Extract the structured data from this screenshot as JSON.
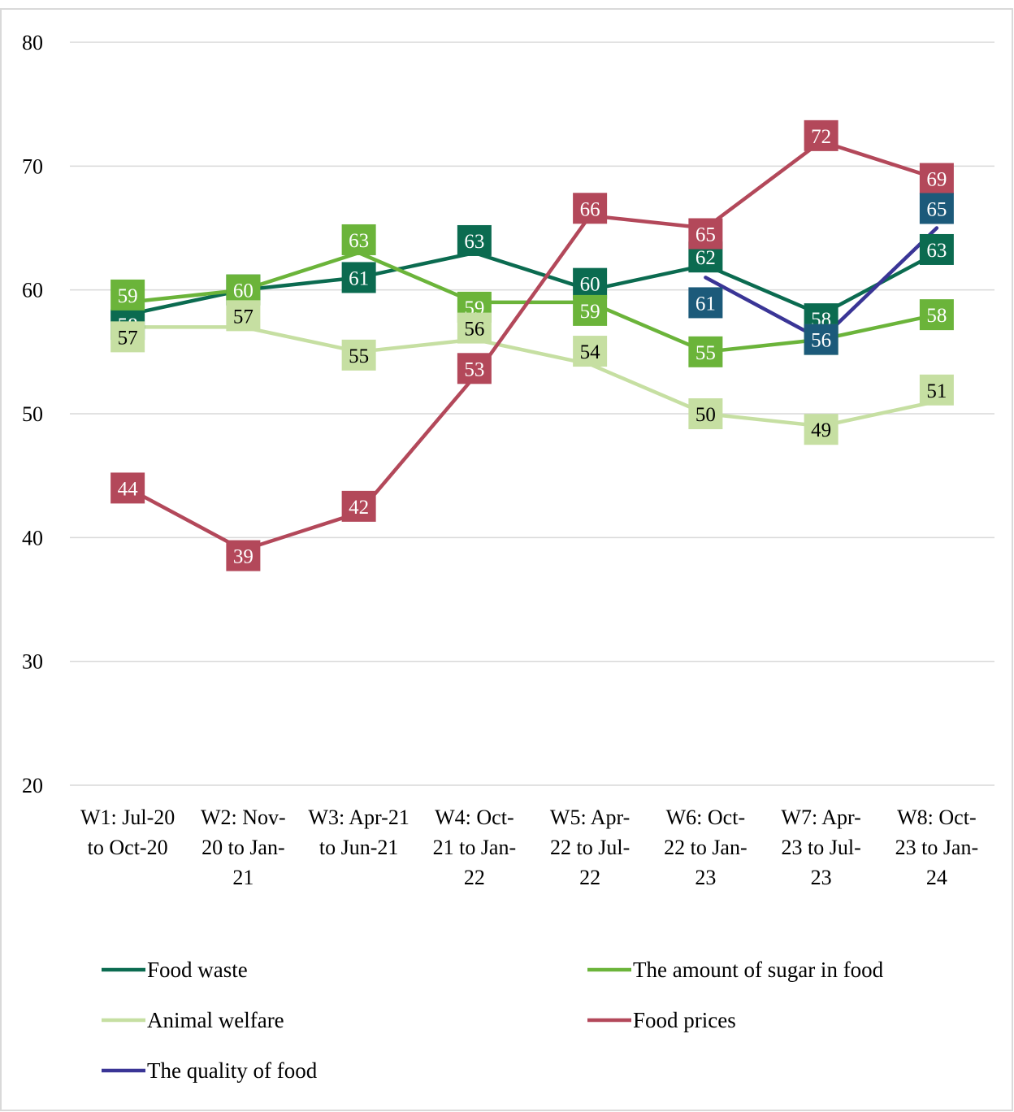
{
  "chart_data": {
    "type": "line",
    "title": "",
    "xlabel": "",
    "ylabel": "",
    "ylim": [
      20,
      80
    ],
    "yticks": [
      20,
      30,
      40,
      50,
      60,
      70,
      80
    ],
    "grid": true,
    "legend_position": "bottom",
    "categories": [
      [
        "W1: Jul-20",
        "to Oct-20"
      ],
      [
        "W2: Nov-",
        "20 to Jan-",
        "21"
      ],
      [
        "W3: Apr-21",
        "to Jun-21"
      ],
      [
        "W4: Oct-",
        "21 to Jan-",
        "22"
      ],
      [
        "W5: Apr-",
        "22 to Jul-",
        "22"
      ],
      [
        "W6: Oct-",
        "22 to Jan-",
        "23"
      ],
      [
        "W7: Apr-",
        "23 to Jul-",
        "23"
      ],
      [
        "W8: Oct-",
        "23 to Jan-",
        "24"
      ]
    ],
    "series": [
      {
        "name": "Food waste",
        "color": "#0b6b50",
        "label_text_color": "#ffffff",
        "values": [
          58,
          60,
          61,
          63,
          60,
          62,
          58,
          63
        ]
      },
      {
        "name": "The amount of sugar in food",
        "color": "#6bb43a",
        "label_text_color": "#ffffff",
        "values": [
          59,
          60,
          63,
          59,
          59,
          55,
          56,
          58
        ]
      },
      {
        "name": "Animal welfare",
        "color": "#c6dfa2",
        "label_text_color": "#000000",
        "values": [
          57,
          57,
          55,
          56,
          54,
          50,
          49,
          51
        ]
      },
      {
        "name": "Food prices",
        "color": "#b3485a",
        "label_text_color": "#ffffff",
        "values": [
          44,
          39,
          42,
          53,
          66,
          65,
          72,
          69
        ]
      },
      {
        "name": "The quality of food",
        "color": "#3a3596",
        "label_color": "#1c5a7a",
        "label_text_color": "#ffffff",
        "values": [
          null,
          null,
          null,
          null,
          null,
          61,
          56,
          65
        ]
      }
    ]
  }
}
